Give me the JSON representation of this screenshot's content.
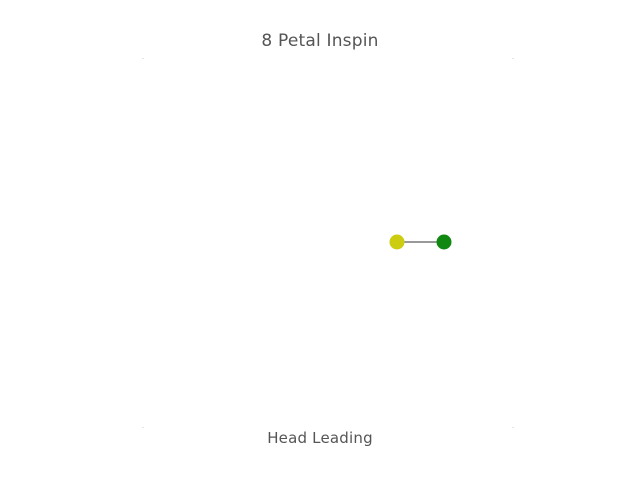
{
  "title": "8 Petal Inspin",
  "caption": "Head Leading",
  "colors": {
    "head_ball": "#cccc11",
    "tail_ball": "#118811",
    "connector": "#333333",
    "text": "#555555"
  }
}
